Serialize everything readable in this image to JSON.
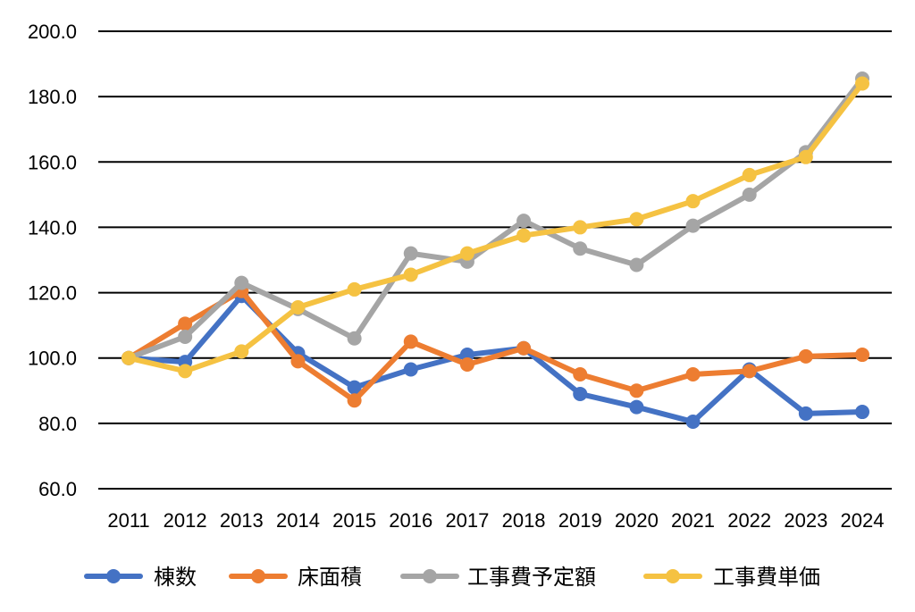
{
  "chart_data": {
    "type": "line",
    "x": [
      "2011",
      "2012",
      "2013",
      "2014",
      "2015",
      "2016",
      "2017",
      "2018",
      "2019",
      "2020",
      "2021",
      "2022",
      "2023",
      "2024"
    ],
    "ylim": [
      60,
      200
    ],
    "yticks": [
      "60.0",
      "80.0",
      "100.0",
      "120.0",
      "140.0",
      "160.0",
      "180.0",
      "200.0"
    ],
    "grid": true,
    "legend_position": "bottom",
    "series": [
      {
        "name": "棟数",
        "color": "#4472C4",
        "values": [
          100.0,
          98.8,
          119.0,
          101.5,
          91.0,
          96.5,
          101.0,
          103.0,
          89.0,
          85.0,
          80.5,
          96.5,
          83.0,
          83.5
        ]
      },
      {
        "name": "床面積",
        "color": "#ED7D31",
        "values": [
          100.0,
          110.5,
          120.5,
          99.0,
          87.0,
          105.0,
          98.0,
          103.0,
          95.0,
          90.0,
          95.0,
          96.0,
          100.5,
          101.0
        ]
      },
      {
        "name": "工事費予定額",
        "color": "#A5A5A5",
        "values": [
          100.0,
          106.5,
          123.0,
          115.0,
          106.0,
          132.0,
          129.5,
          142.0,
          133.5,
          128.5,
          140.5,
          150.0,
          163.0,
          185.5
        ]
      },
      {
        "name": "工事費単価",
        "color": "#F5C242",
        "values": [
          100.0,
          96.0,
          102.0,
          115.5,
          121.0,
          125.5,
          132.0,
          137.5,
          140.0,
          142.5,
          148.0,
          156.0,
          161.5,
          184.0
        ]
      }
    ]
  }
}
